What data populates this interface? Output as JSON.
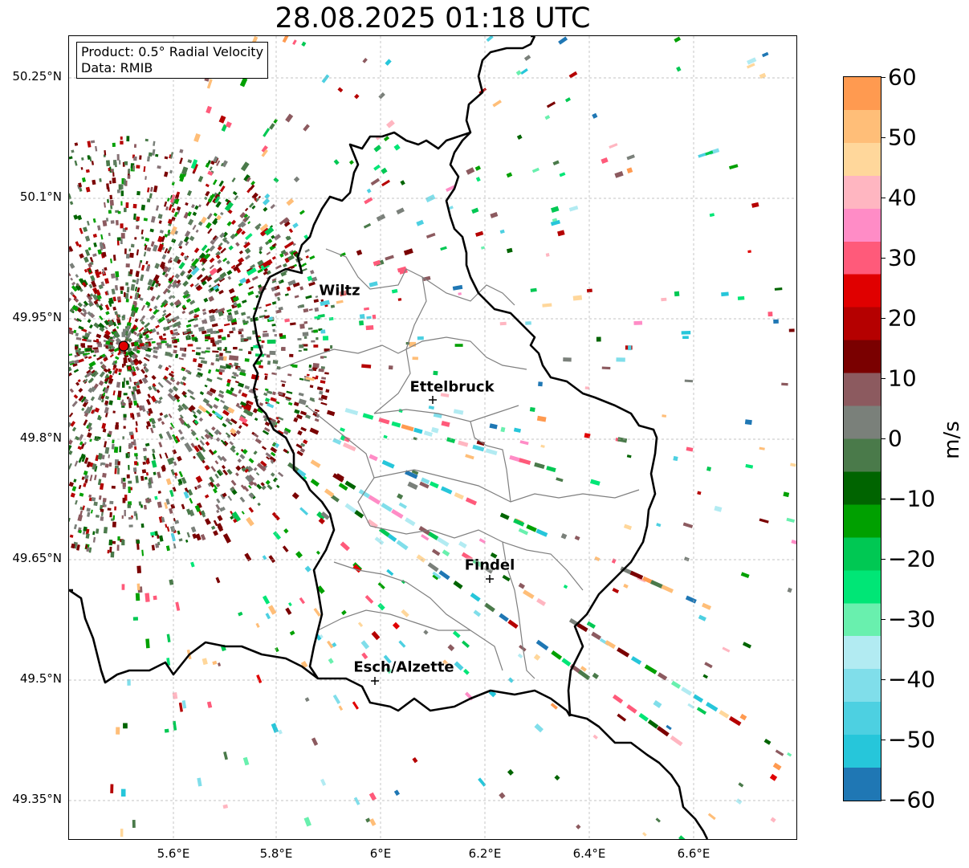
{
  "title": "28.08.2025 01:18 UTC",
  "info": {
    "product": "Product: 0.5° Radial Velocity",
    "data_source": "Data: RMIB"
  },
  "lat_labels": [
    "50.25°N",
    "50.1°N",
    "49.95°N",
    "49.8°N",
    "49.65°N",
    "49.5°N",
    "49.35°N"
  ],
  "lon_labels": [
    "5.6°E",
    "5.8°E",
    "6°E",
    "6.2°E",
    "6.4°E",
    "6.6°E"
  ],
  "cities": [
    {
      "name": "Wiltz"
    },
    {
      "name": "Ettelbruck"
    },
    {
      "name": "Findel"
    },
    {
      "name": "Esch/Alzette"
    }
  ],
  "colorbar": {
    "ticks": [
      "60",
      "50",
      "40",
      "30",
      "20",
      "10",
      "0",
      "−10",
      "−20",
      "−30",
      "−40",
      "−50",
      "−60"
    ],
    "unit": "m/s",
    "colors": [
      "#1f77b4",
      "#26c6da",
      "#4dd0e1",
      "#80deea",
      "#b2ebf2",
      "#69f0ae",
      "#00e676",
      "#00c853",
      "#00a000",
      "#006400",
      "#4a7a4a",
      "#7a807a",
      "#8c5a5f",
      "#7a0000",
      "#b50000",
      "#e00000",
      "#ff5a7a",
      "#ff8cc6",
      "#ffb6c1",
      "#ffd79b",
      "#ffbe78",
      "#ff9a50"
    ],
    "vmin": -60,
    "vmax": 60
  },
  "radar_color": "#e00000"
}
